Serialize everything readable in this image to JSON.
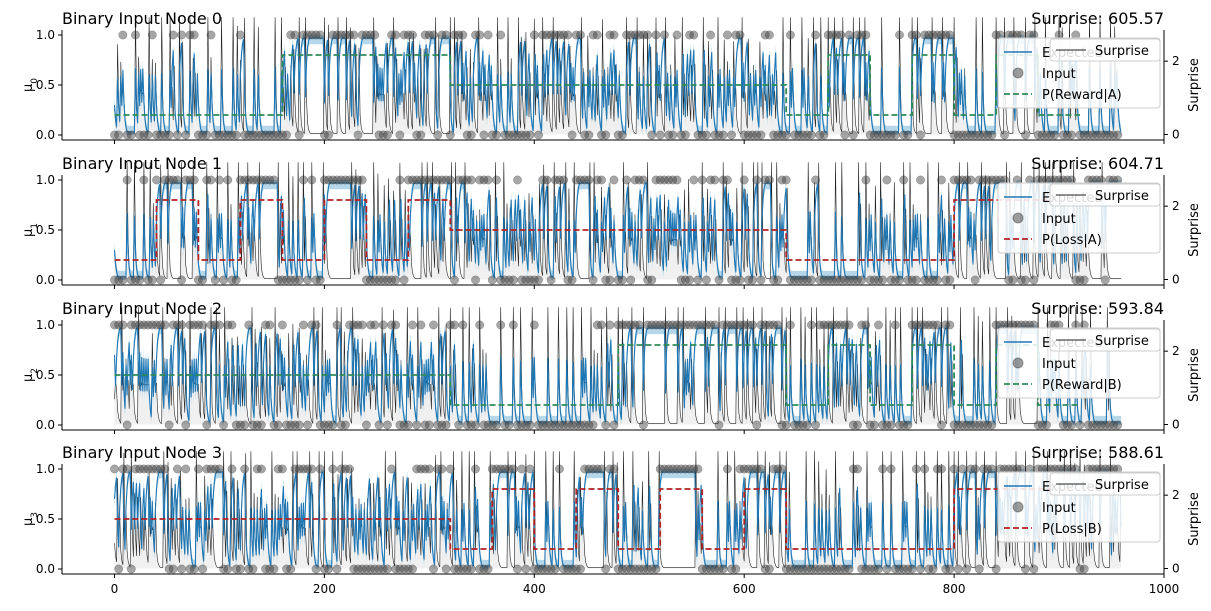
{
  "chart_data": [
    {
      "type": "line",
      "title": "Binary Input Node 0",
      "title_right": "Surprise: 605.57",
      "ylabel_base": "μ",
      "ylabel_sub": "0",
      "ylabel_right": "Surprise",
      "xlim": [
        -50,
        1000
      ],
      "ylim": [
        0,
        1
      ],
      "yticks": [
        "0.0",
        "0.5",
        "1.0"
      ],
      "yticks_right": [
        "0",
        "2"
      ],
      "legend_position": "upper right",
      "legend": [
        "Expected",
        "Input",
        "P(Reward|A)",
        "Surprise"
      ],
      "contingency_color": "#2e8b57",
      "contingency": [
        {
          "x": [
            0,
            160
          ],
          "y": 0.2
        },
        {
          "x": [
            160,
            320
          ],
          "y": 0.8
        },
        {
          "x": [
            320,
            640
          ],
          "y": 0.5
        },
        {
          "x": [
            640,
            680
          ],
          "y": 0.2
        },
        {
          "x": [
            680,
            720
          ],
          "y": 0.8
        },
        {
          "x": [
            720,
            760
          ],
          "y": 0.2
        },
        {
          "x": [
            760,
            800
          ],
          "y": 0.8
        },
        {
          "x": [
            800,
            840
          ],
          "y": 0.2
        },
        {
          "x": [
            840,
            880
          ],
          "y": 0.8
        },
        {
          "x": [
            880,
            920
          ],
          "y": 0.2
        }
      ],
      "seed": 11
    },
    {
      "type": "line",
      "title": "Binary Input Node 1",
      "title_right": "Surprise: 604.71",
      "ylabel_base": "μ",
      "ylabel_sub": "1",
      "ylabel_right": "Surprise",
      "xlim": [
        -50,
        1000
      ],
      "ylim": [
        0,
        1
      ],
      "yticks": [
        "0.0",
        "0.5",
        "1.0"
      ],
      "yticks_right": [
        "0",
        "2"
      ],
      "legend_position": "upper right",
      "legend": [
        "Expected",
        "Input",
        "P(Loss|A)",
        "Surprise"
      ],
      "contingency_color": "#b22222",
      "contingency": [
        {
          "x": [
            0,
            40
          ],
          "y": 0.2
        },
        {
          "x": [
            40,
            80
          ],
          "y": 0.8
        },
        {
          "x": [
            80,
            120
          ],
          "y": 0.2
        },
        {
          "x": [
            120,
            160
          ],
          "y": 0.8
        },
        {
          "x": [
            160,
            200
          ],
          "y": 0.2
        },
        {
          "x": [
            200,
            240
          ],
          "y": 0.8
        },
        {
          "x": [
            240,
            280
          ],
          "y": 0.2
        },
        {
          "x": [
            280,
            320
          ],
          "y": 0.8
        },
        {
          "x": [
            320,
            640
          ],
          "y": 0.5
        },
        {
          "x": [
            640,
            800
          ],
          "y": 0.2
        },
        {
          "x": [
            800,
            960
          ],
          "y": 0.8
        }
      ],
      "seed": 23
    },
    {
      "type": "line",
      "title": "Binary Input Node 2",
      "title_right": "Surprise: 593.84",
      "ylabel_base": "μ",
      "ylabel_sub": "2",
      "ylabel_right": "Surprise",
      "xlim": [
        -50,
        1000
      ],
      "ylim": [
        0,
        1
      ],
      "yticks": [
        "0.0",
        "0.5",
        "1.0"
      ],
      "yticks_right": [
        "0",
        "2"
      ],
      "legend_position": "upper right",
      "legend": [
        "Expected",
        "Input",
        "P(Reward|B)",
        "Surprise"
      ],
      "contingency_color": "#2e8b57",
      "contingency": [
        {
          "x": [
            0,
            320
          ],
          "y": 0.5
        },
        {
          "x": [
            320,
            480
          ],
          "y": 0.2
        },
        {
          "x": [
            480,
            640
          ],
          "y": 0.8
        },
        {
          "x": [
            640,
            680
          ],
          "y": 0.2
        },
        {
          "x": [
            680,
            720
          ],
          "y": 0.8
        },
        {
          "x": [
            720,
            760
          ],
          "y": 0.2
        },
        {
          "x": [
            760,
            800
          ],
          "y": 0.8
        },
        {
          "x": [
            800,
            840
          ],
          "y": 0.2
        },
        {
          "x": [
            840,
            880
          ],
          "y": 0.8
        },
        {
          "x": [
            880,
            920
          ],
          "y": 0.2
        }
      ],
      "seed": 37
    },
    {
      "type": "line",
      "title": "Binary Input Node 3",
      "title_right": "Surprise: 588.61",
      "ylabel_base": "μ",
      "ylabel_sub": "3",
      "ylabel_right": "Surprise",
      "xlim": [
        -50,
        1000
      ],
      "ylim": [
        0,
        1
      ],
      "yticks": [
        "0.0",
        "0.5",
        "1.0"
      ],
      "yticks_right": [
        "0",
        "2"
      ],
      "xticks": [
        "0",
        "200",
        "400",
        "600",
        "800",
        "1000"
      ],
      "legend_position": "upper right",
      "legend": [
        "Expected",
        "Input",
        "P(Loss|B)",
        "Surprise"
      ],
      "contingency_color": "#b22222",
      "contingency": [
        {
          "x": [
            0,
            320
          ],
          "y": 0.5
        },
        {
          "x": [
            320,
            360
          ],
          "y": 0.2
        },
        {
          "x": [
            360,
            400
          ],
          "y": 0.8
        },
        {
          "x": [
            400,
            440
          ],
          "y": 0.2
        },
        {
          "x": [
            440,
            480
          ],
          "y": 0.8
        },
        {
          "x": [
            480,
            520
          ],
          "y": 0.2
        },
        {
          "x": [
            520,
            560
          ],
          "y": 0.8
        },
        {
          "x": [
            560,
            600
          ],
          "y": 0.2
        },
        {
          "x": [
            600,
            640
          ],
          "y": 0.8
        },
        {
          "x": [
            640,
            800
          ],
          "y": 0.2
        },
        {
          "x": [
            800,
            960
          ],
          "y": 0.8
        }
      ],
      "seed": 53
    }
  ],
  "colors": {
    "expected": "#1f77b4",
    "band": "#9ecae1",
    "input_points": "#3a3a3a",
    "surprise_line": "#222222"
  }
}
